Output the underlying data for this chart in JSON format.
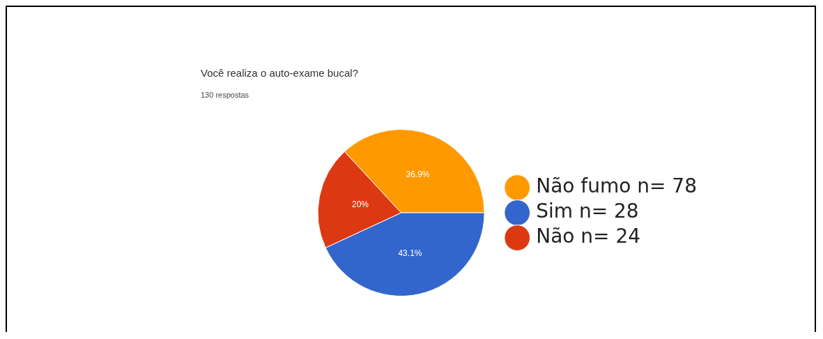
{
  "chart_data": {
    "type": "pie",
    "title": "Você realiza o auto-exame bucal?",
    "subtitle": "130 respostas",
    "categories": [
      "Não fumo n= 78",
      "Sim n= 28",
      "Não n= 24"
    ],
    "values": [
      36.9,
      43.1,
      20
    ],
    "colors": [
      "#ff9900",
      "#3366cc",
      "#dc3912"
    ],
    "value_labels": [
      "36.9%",
      "43.1%",
      "20%"
    ],
    "legend": "right"
  }
}
